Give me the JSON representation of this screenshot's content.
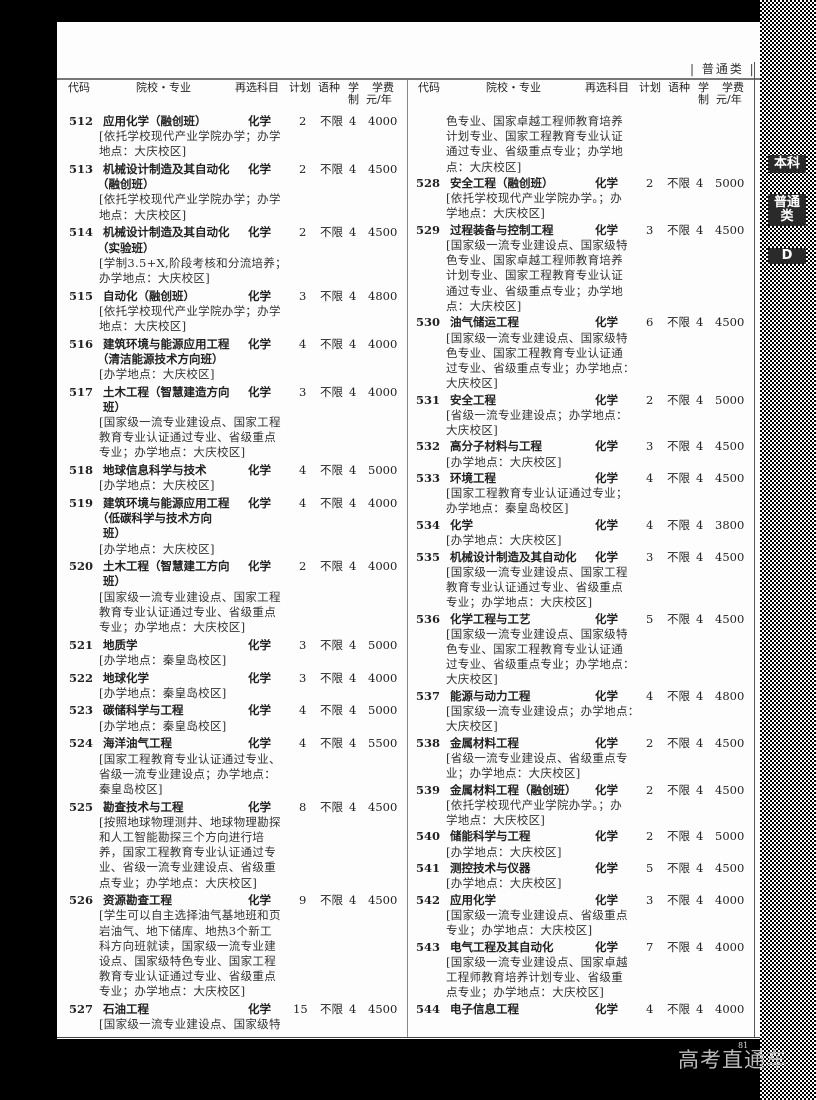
{
  "header": {
    "category": "| 普通类 |"
  },
  "side_tabs": [
    "本科",
    "普通类",
    "D"
  ],
  "columns": {
    "code": "代码",
    "school_major": "院校・专业",
    "subject": "再选科目",
    "plan": "计划",
    "language": "语种",
    "duration": [
      "学",
      "制"
    ],
    "fee": [
      "学费",
      "元/年"
    ]
  },
  "left": [
    {
      "code": "512",
      "name": [
        "应用化学（融创班）"
      ],
      "subject": "化学",
      "plan": "2",
      "language": "不限",
      "duration": "4",
      "fee": "4000",
      "notes": [
        "[依托学校现代产业学院办学；办学",
        "地点：大庆校区]"
      ]
    },
    {
      "code": "513",
      "name": [
        "机械设计制造及其自动化",
        "（融创班）"
      ],
      "subject": "化学",
      "plan": "2",
      "language": "不限",
      "duration": "4",
      "fee": "4500",
      "notes": [
        "[依托学校现代产业学院办学；办学",
        "地点：大庆校区]"
      ]
    },
    {
      "code": "514",
      "name": [
        "机械设计制造及其自动化",
        "（实验班）"
      ],
      "subject": "化学",
      "plan": "2",
      "language": "不限",
      "duration": "4",
      "fee": "4500",
      "notes": [
        "[学制3.5+X,阶段考核和分流培养；",
        "办学地点：大庆校区]"
      ]
    },
    {
      "code": "515",
      "name": [
        "自动化（融创班）"
      ],
      "subject": "化学",
      "plan": "3",
      "language": "不限",
      "duration": "4",
      "fee": "4800",
      "notes": [
        "[依托学校现代产业学院办学；办学",
        "地点：大庆校区]"
      ]
    },
    {
      "code": "516",
      "name": [
        "建筑环境与能源应用工程",
        "（清洁能源技术方向班）"
      ],
      "subject": "化学",
      "plan": "4",
      "language": "不限",
      "duration": "4",
      "fee": "4000",
      "notes": [
        "[办学地点：大庆校区]"
      ]
    },
    {
      "code": "517",
      "name": [
        "土木工程（智慧建造方向",
        "班）"
      ],
      "subject": "化学",
      "plan": "3",
      "language": "不限",
      "duration": "4",
      "fee": "4000",
      "notes": [
        "[国家级一流专业建设点、国家工程",
        "教育专业认证通过专业、省级重点",
        "专业；办学地点：大庆校区]"
      ]
    },
    {
      "code": "518",
      "name": [
        "地球信息科学与技术"
      ],
      "subject": "化学",
      "plan": "4",
      "language": "不限",
      "duration": "4",
      "fee": "5000",
      "notes": [
        "[办学地点：大庆校区]"
      ]
    },
    {
      "code": "519",
      "name": [
        "建筑环境与能源应用工程",
        "（低碳科学与技术方向",
        "班）"
      ],
      "subject": "化学",
      "plan": "4",
      "language": "不限",
      "duration": "4",
      "fee": "4000",
      "notes": [
        "[办学地点：大庆校区]"
      ]
    },
    {
      "code": "520",
      "name": [
        "土木工程（智慧建工方向",
        "班）"
      ],
      "subject": "化学",
      "plan": "2",
      "language": "不限",
      "duration": "4",
      "fee": "4000",
      "notes": [
        "[国家级一流专业建设点、国家工程",
        "教育专业认证通过专业、省级重点",
        "专业；办学地点：大庆校区]"
      ]
    },
    {
      "code": "521",
      "name": [
        "地质学"
      ],
      "subject": "化学",
      "plan": "3",
      "language": "不限",
      "duration": "4",
      "fee": "5000",
      "notes": [
        "[办学地点：秦皇岛校区]"
      ]
    },
    {
      "code": "522",
      "name": [
        "地球化学"
      ],
      "subject": "化学",
      "plan": "3",
      "language": "不限",
      "duration": "4",
      "fee": "4000",
      "notes": [
        "[办学地点：秦皇岛校区]"
      ]
    },
    {
      "code": "523",
      "name": [
        "碳储科学与工程"
      ],
      "subject": "化学",
      "plan": "4",
      "language": "不限",
      "duration": "4",
      "fee": "5000",
      "notes": [
        "[办学地点：秦皇岛校区]"
      ]
    },
    {
      "code": "524",
      "name": [
        "海洋油气工程"
      ],
      "subject": "化学",
      "plan": "4",
      "language": "不限",
      "duration": "4",
      "fee": "5500",
      "notes": [
        "[国家工程教育专业认证通过专业、",
        "省级一流专业建设点；办学地点：",
        "秦皇岛校区]"
      ]
    },
    {
      "code": "525",
      "name": [
        "勘查技术与工程"
      ],
      "subject": "化学",
      "plan": "8",
      "language": "不限",
      "duration": "4",
      "fee": "4500",
      "notes": [
        "[按照地球物理测井、地球物理勘探",
        "和人工智能勘探三个方向进行培",
        "养，国家工程教育专业认证通过专",
        "业、省级一流专业建设点、省级重",
        "点专业；办学地点：大庆校区]"
      ]
    },
    {
      "code": "526",
      "name": [
        "资源勘查工程"
      ],
      "subject": "化学",
      "plan": "9",
      "language": "不限",
      "duration": "4",
      "fee": "4500",
      "notes": [
        "[学生可以自主选择油气基地班和页",
        "岩油气、地下储库、地热3个新工",
        "科方向班就读，国家级一流专业建",
        "设点、国家级特色专业、国家工程",
        "教育专业认证通过专业、省级重点",
        "专业；办学地点：大庆校区]"
      ]
    },
    {
      "code": "527",
      "name": [
        "石油工程"
      ],
      "subject": "化学",
      "plan": "15",
      "language": "不限",
      "duration": "4",
      "fee": "4500",
      "notes": [
        "[国家级一流专业建设点、国家级特"
      ]
    }
  ],
  "right": [
    {
      "notes": [
        "色专业、国家卓越工程师教育培养",
        "计划专业、国家工程教育专业认证",
        "通过专业、省级重点专业；办学地",
        "点：大庆校区]"
      ]
    },
    {
      "code": "528",
      "name": [
        "安全工程（融创班）"
      ],
      "subject": "化学",
      "plan": "2",
      "language": "不限",
      "duration": "4",
      "fee": "5000",
      "notes": [
        "[依托学校现代产业学院办学。；办",
        "学地点：大庆校区]"
      ]
    },
    {
      "code": "529",
      "name": [
        "过程装备与控制工程"
      ],
      "subject": "化学",
      "plan": "3",
      "language": "不限",
      "duration": "4",
      "fee": "4500",
      "notes": [
        "[国家级一流专业建设点、国家级特",
        "色专业、国家卓越工程师教育培养",
        "计划专业、国家工程教育专业认证",
        "通过专业、省级重点专业；办学地",
        "点：大庆校区]"
      ]
    },
    {
      "code": "530",
      "name": [
        "油气储运工程"
      ],
      "subject": "化学",
      "plan": "6",
      "language": "不限",
      "duration": "4",
      "fee": "4500",
      "notes": [
        "[国家级一流专业建设点、国家级特",
        "色专业、国家工程教育专业认证通",
        "过专业、省级重点专业；办学地点：",
        "大庆校区]"
      ]
    },
    {
      "code": "531",
      "name": [
        "安全工程"
      ],
      "subject": "化学",
      "plan": "2",
      "language": "不限",
      "duration": "4",
      "fee": "5000",
      "notes": [
        "[省级一流专业建设点；办学地点：",
        "大庆校区]"
      ]
    },
    {
      "code": "532",
      "name": [
        "高分子材料与工程"
      ],
      "subject": "化学",
      "plan": "3",
      "language": "不限",
      "duration": "4",
      "fee": "4500",
      "notes": [
        "[办学地点：大庆校区]"
      ]
    },
    {
      "code": "533",
      "name": [
        "环境工程"
      ],
      "subject": "化学",
      "plan": "4",
      "language": "不限",
      "duration": "4",
      "fee": "4500",
      "notes": [
        "[国家工程教育专业认证通过专业；",
        "办学地点：秦皇岛校区]"
      ]
    },
    {
      "code": "534",
      "name": [
        "化学"
      ],
      "subject": "化学",
      "plan": "4",
      "language": "不限",
      "duration": "4",
      "fee": "3800",
      "notes": [
        "[办学地点：大庆校区]"
      ]
    },
    {
      "code": "535",
      "name": [
        "机械设计制造及其自动化"
      ],
      "subject": "化学",
      "plan": "3",
      "language": "不限",
      "duration": "4",
      "fee": "4500",
      "notes": [
        "[国家级一流专业建设点、国家工程",
        "教育专业认证通过专业、省级重点",
        "专业；办学地点：大庆校区]"
      ]
    },
    {
      "code": "536",
      "name": [
        "化学工程与工艺"
      ],
      "subject": "化学",
      "plan": "5",
      "language": "不限",
      "duration": "4",
      "fee": "4500",
      "notes": [
        "[国家级一流专业建设点、国家级特",
        "色专业、国家工程教育专业认证通",
        "过专业、省级重点专业；办学地点：",
        "大庆校区]"
      ]
    },
    {
      "code": "537",
      "name": [
        "能源与动力工程"
      ],
      "subject": "化学",
      "plan": "4",
      "language": "不限",
      "duration": "4",
      "fee": "4800",
      "notes": [
        "[国家级一流专业建设点；办学地点：",
        "大庆校区]"
      ]
    },
    {
      "code": "538",
      "name": [
        "金属材料工程"
      ],
      "subject": "化学",
      "plan": "2",
      "language": "不限",
      "duration": "4",
      "fee": "4500",
      "notes": [
        "[省级一流专业建设点、省级重点专",
        "业；办学地点：大庆校区]"
      ]
    },
    {
      "code": "539",
      "name": [
        "金属材料工程（融创班）"
      ],
      "subject": "化学",
      "plan": "2",
      "language": "不限",
      "duration": "4",
      "fee": "4500",
      "notes": [
        "[依托学校现代产业学院办学。；办",
        "学地点：大庆校区]"
      ]
    },
    {
      "code": "540",
      "name": [
        "储能科学与工程"
      ],
      "subject": "化学",
      "plan": "2",
      "language": "不限",
      "duration": "4",
      "fee": "5000",
      "notes": [
        "[办学地点：大庆校区]"
      ]
    },
    {
      "code": "541",
      "name": [
        "测控技术与仪器"
      ],
      "subject": "化学",
      "plan": "5",
      "language": "不限",
      "duration": "4",
      "fee": "4500",
      "notes": [
        "[办学地点：大庆校区]"
      ]
    },
    {
      "code": "542",
      "name": [
        "应用化学"
      ],
      "subject": "化学",
      "plan": "3",
      "language": "不限",
      "duration": "4",
      "fee": "4000",
      "notes": [
        "[国家级一流专业建设点、省级重点",
        "专业；办学地点：大庆校区]"
      ]
    },
    {
      "code": "543",
      "name": [
        "电气工程及其自动化"
      ],
      "subject": "化学",
      "plan": "7",
      "language": "不限",
      "duration": "4",
      "fee": "4000",
      "notes": [
        "[国家级一流专业建设点、国家卓越",
        "工程师教育培养计划专业、省级重",
        "点专业；办学地点：大庆校区]"
      ]
    },
    {
      "code": "544",
      "name": [
        "电子信息工程"
      ],
      "subject": "化学",
      "plan": "4",
      "language": "不限",
      "duration": "4",
      "fee": "4000",
      "notes": []
    }
  ],
  "footer": {
    "page_number": "81",
    "watermark": "高考直通车"
  }
}
